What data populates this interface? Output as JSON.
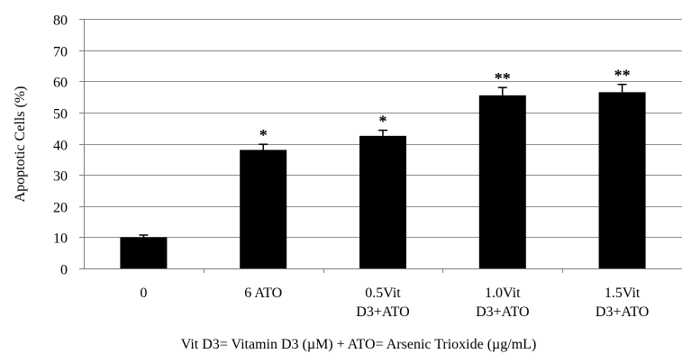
{
  "chart_data": {
    "type": "bar",
    "xlabel": "Vit D3= Vitamin D3 (µM) + ATO= Arsenic Trioxide  (µg/mL)",
    "ylabel": "Apoptotic Cells (%)",
    "ylim": [
      0,
      80
    ],
    "yticks": [
      "0",
      "10",
      "20",
      "30",
      "40",
      "50",
      "60",
      "70",
      "80"
    ],
    "grid": true,
    "categories": [
      [
        "0"
      ],
      [
        "6 ATO"
      ],
      [
        "0.5Vit",
        "D3+ATO"
      ],
      [
        "1.0Vit",
        "D3+ATO"
      ],
      [
        "1.5Vit",
        "D3+ATO"
      ]
    ],
    "values": [
      10,
      38,
      42.5,
      55.5,
      56.5
    ],
    "errors": [
      0.7,
      1.8,
      1.8,
      2.5,
      2.5
    ],
    "significance": [
      "",
      "*",
      "*",
      "**",
      "**"
    ],
    "bar_color": "#000000",
    "grid_color": "#8c8c8c"
  }
}
